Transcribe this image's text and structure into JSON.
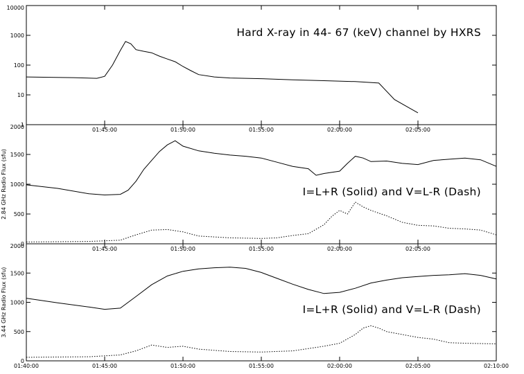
{
  "chart_data": [
    {
      "type": "line",
      "title": "Hard X-ray in  44- 67 (keV) channel by HXRS",
      "ylabel": "",
      "yscale": "log",
      "ylim": [
        1,
        10000
      ],
      "xlim": [
        "01:40:00",
        "02:10:00"
      ],
      "ytick_labels": [
        "1",
        "10",
        "100",
        "1000",
        "10000"
      ],
      "xtick_labels": [
        "01:45:00",
        "01:50:00",
        "01:55:00",
        "02:00:00",
        "02:05:00"
      ],
      "series": [
        {
          "style": "solid",
          "x": [
            "01:40:00",
            "01:43:00",
            "01:44:30",
            "01:45:00",
            "01:45:30",
            "01:46:00",
            "01:46:20",
            "01:46:40",
            "01:47:00",
            "01:47:30",
            "01:48:00",
            "01:48:30",
            "01:49:00",
            "01:49:30",
            "01:50:00",
            "01:50:30",
            "01:51:00",
            "01:52:00",
            "01:53:00",
            "01:55:00",
            "01:57:00",
            "01:59:00",
            "02:01:00",
            "02:02:30",
            "02:03:30",
            "02:04:30",
            "02:05:00"
          ],
          "values": [
            40,
            38,
            36,
            42,
            100,
            310,
            620,
            520,
            330,
            290,
            260,
            200,
            160,
            130,
            90,
            65,
            48,
            40,
            37,
            35,
            32,
            30,
            28,
            25,
            7,
            3.5,
            2.5
          ]
        }
      ]
    },
    {
      "type": "line",
      "title": "I=L+R (Solid) and V=L-R (Dash)",
      "ylabel": "2.84 GHz Radio Flux (sfu)",
      "ylim": [
        0,
        2000
      ],
      "xlim": [
        "01:40:00",
        "02:10:00"
      ],
      "ytick_labels": [
        "0",
        "500",
        "1000",
        "1500",
        "2000"
      ],
      "xtick_labels": [
        "01:45:00",
        "01:50:00",
        "01:55:00",
        "02:00:00",
        "02:05:00"
      ],
      "series": [
        {
          "name": "I=L+R",
          "style": "solid",
          "x": [
            "01:40:00",
            "01:42:00",
            "01:44:00",
            "01:45:00",
            "01:46:00",
            "01:46:30",
            "01:47:00",
            "01:47:30",
            "01:48:00",
            "01:48:30",
            "01:49:00",
            "01:49:30",
            "01:50:00",
            "01:51:00",
            "01:52:00",
            "01:53:00",
            "01:54:00",
            "01:55:00",
            "01:56:00",
            "01:57:00",
            "01:58:00",
            "01:58:30",
            "01:59:00",
            "02:00:00",
            "02:00:30",
            "02:01:00",
            "02:01:30",
            "02:02:00",
            "02:03:00",
            "02:04:00",
            "02:05:00",
            "02:06:00",
            "02:07:00",
            "02:08:00",
            "02:09:00",
            "02:10:00"
          ],
          "values": [
            990,
            930,
            840,
            820,
            830,
            900,
            1050,
            1250,
            1400,
            1550,
            1660,
            1730,
            1640,
            1560,
            1520,
            1490,
            1470,
            1440,
            1370,
            1300,
            1260,
            1150,
            1180,
            1220,
            1350,
            1470,
            1440,
            1380,
            1390,
            1350,
            1330,
            1400,
            1420,
            1440,
            1410,
            1300
          ]
        },
        {
          "name": "V=L-R",
          "style": "dashed",
          "x": [
            "01:40:00",
            "01:44:00",
            "01:46:00",
            "01:47:00",
            "01:48:00",
            "01:49:00",
            "01:50:00",
            "01:51:00",
            "01:53:00",
            "01:55:00",
            "01:56:00",
            "01:57:00",
            "01:58:00",
            "01:59:00",
            "01:59:30",
            "02:00:00",
            "02:00:30",
            "02:01:00",
            "02:01:30",
            "02:02:00",
            "02:03:00",
            "02:04:00",
            "02:05:00",
            "02:06:00",
            "02:07:00",
            "02:08:00",
            "02:09:00",
            "02:10:00"
          ],
          "values": [
            30,
            40,
            60,
            150,
            230,
            240,
            200,
            130,
            100,
            90,
            100,
            140,
            170,
            320,
            460,
            560,
            500,
            700,
            620,
            560,
            470,
            360,
            310,
            300,
            260,
            250,
            230,
            150
          ]
        }
      ]
    },
    {
      "type": "line",
      "title": "I=L+R (Solid) and V=L-R (Dash)",
      "ylabel": "3.44 GHz Radio Flux (sfu)",
      "ylim": [
        0,
        2000
      ],
      "xlim": [
        "01:40:00",
        "02:10:00"
      ],
      "ytick_labels": [
        "0",
        "500",
        "1000",
        "1500",
        "2000"
      ],
      "xtick_labels": [
        "01:40:00",
        "01:45:00",
        "01:50:00",
        "01:55:00",
        "02:00:00",
        "02:05:00",
        "02:10:00"
      ],
      "series": [
        {
          "name": "I=L+R",
          "style": "solid",
          "x": [
            "01:40:00",
            "01:42:00",
            "01:44:00",
            "01:45:00",
            "01:46:00",
            "01:47:00",
            "01:48:00",
            "01:49:00",
            "01:50:00",
            "01:51:00",
            "01:52:00",
            "01:53:00",
            "01:54:00",
            "01:55:00",
            "01:56:00",
            "01:57:00",
            "01:58:00",
            "01:59:00",
            "02:00:00",
            "02:01:00",
            "02:02:00",
            "02:03:00",
            "02:04:00",
            "02:05:00",
            "02:06:00",
            "02:07:00",
            "02:08:00",
            "02:09:00",
            "02:10:00"
          ],
          "values": [
            1070,
            990,
            920,
            880,
            900,
            1100,
            1300,
            1450,
            1530,
            1570,
            1590,
            1600,
            1580,
            1510,
            1410,
            1310,
            1220,
            1150,
            1170,
            1240,
            1330,
            1380,
            1420,
            1440,
            1460,
            1470,
            1490,
            1460,
            1400
          ]
        },
        {
          "name": "V=L-R",
          "style": "dashed",
          "x": [
            "01:40:00",
            "01:44:00",
            "01:46:00",
            "01:47:00",
            "01:48:00",
            "01:49:00",
            "01:50:00",
            "01:51:00",
            "01:53:00",
            "01:55:00",
            "01:57:00",
            "01:58:00",
            "01:59:00",
            "02:00:00",
            "02:01:00",
            "02:01:30",
            "02:02:00",
            "02:02:30",
            "02:03:00",
            "02:04:00",
            "02:05:00",
            "02:06:00",
            "02:07:00",
            "02:08:00",
            "02:10:00"
          ],
          "values": [
            60,
            70,
            100,
            170,
            270,
            230,
            250,
            200,
            160,
            150,
            170,
            210,
            250,
            300,
            450,
            560,
            600,
            560,
            500,
            450,
            400,
            370,
            310,
            300,
            290
          ]
        }
      ]
    }
  ]
}
